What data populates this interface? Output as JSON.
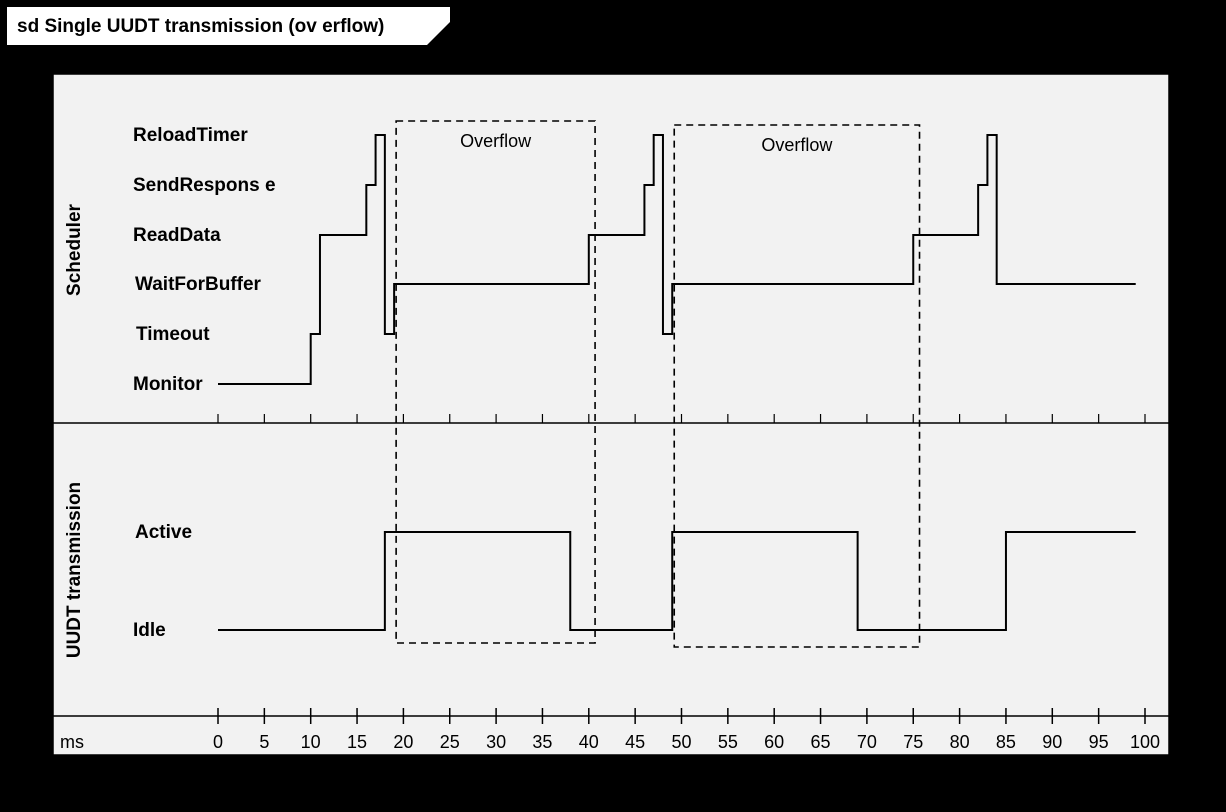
{
  "frame_title": "sd Single UUDT transmission (ov erflow)",
  "colors": {
    "background": "#000000",
    "panel": "#f2f2f2",
    "ink": "#000000"
  },
  "lanes": [
    {
      "name": "Scheduler",
      "states": [
        "ReloadTimer",
        "SendRespons e",
        "ReadData",
        "WaitForBuffer",
        "Timeout",
        "Monitor"
      ]
    },
    {
      "name": "UUDT transmission",
      "states": [
        "Active",
        "Idle"
      ]
    }
  ],
  "axis": {
    "unit_label": "ms",
    "min": 0,
    "max": 100,
    "ticks": [
      "0",
      "5",
      "10",
      "15",
      "20",
      "25",
      "30",
      "35",
      "40",
      "45",
      "50",
      "55",
      "60",
      "65",
      "70",
      "75",
      "80",
      "85",
      "90",
      "95",
      "100"
    ]
  },
  "timelines": {
    "scheduler": [
      {
        "t": 0,
        "state": "Monitor"
      },
      {
        "t": 10,
        "state": "Timeout"
      },
      {
        "t": 11,
        "state": "ReadData"
      },
      {
        "t": 16,
        "state": "SendRespons e"
      },
      {
        "t": 17,
        "state": "ReloadTimer"
      },
      {
        "t": 18,
        "state": "Timeout"
      },
      {
        "t": 19,
        "state": "WaitForBuffer"
      },
      {
        "t": 40,
        "state": "ReadData"
      },
      {
        "t": 46,
        "state": "SendRespons e"
      },
      {
        "t": 47,
        "state": "ReloadTimer"
      },
      {
        "t": 48,
        "state": "Timeout"
      },
      {
        "t": 49,
        "state": "WaitForBuffer"
      },
      {
        "t": 75,
        "state": "ReadData"
      },
      {
        "t": 82,
        "state": "SendRespons e"
      },
      {
        "t": 83,
        "state": "ReloadTimer"
      },
      {
        "t": 84,
        "state": "WaitForBuffer"
      },
      {
        "t": 99,
        "state": "WaitForBuffer"
      }
    ],
    "uudt": [
      {
        "t": 0,
        "state": "Idle"
      },
      {
        "t": 18,
        "state": "Active"
      },
      {
        "t": 38,
        "state": "Idle"
      },
      {
        "t": 49,
        "state": "Active"
      },
      {
        "t": 69,
        "state": "Idle"
      },
      {
        "t": 85,
        "state": "Active"
      },
      {
        "t": 99,
        "state": "Active"
      }
    ]
  },
  "fragments": [
    {
      "label": "Overflow",
      "start": 19,
      "end": 41
    },
    {
      "label": "Overflow",
      "start": 49,
      "end": 76
    }
  ]
}
